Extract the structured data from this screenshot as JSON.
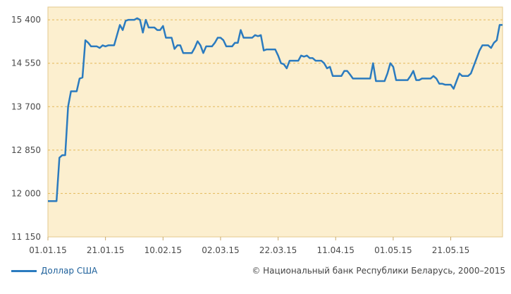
{
  "chart_data": {
    "type": "line",
    "title": "",
    "xlabel": "",
    "ylabel": "",
    "ylim": [
      11150,
      15650
    ],
    "yticks": [
      "11 150",
      "12 000",
      "12 850",
      "13 700",
      "14 550",
      "15 400"
    ],
    "ytick_values": [
      11150,
      12000,
      12850,
      13700,
      14550,
      15400
    ],
    "xticks": [
      "01.01.15",
      "21.01.15",
      "10.02.15",
      "02.03.15",
      "22.03.15",
      "11.04.15",
      "01.05.15",
      "21.05.15"
    ],
    "xlim": [
      "01.01.15",
      "08.06.15"
    ],
    "grid": true,
    "legend_position": "bottom-left",
    "series": [
      {
        "name": "Доллар США",
        "color": "#2b7bbf",
        "points": [
          [
            "01.01.15",
            11850
          ],
          [
            "02.01.15",
            11850
          ],
          [
            "03.01.15",
            11850
          ],
          [
            "04.01.15",
            11850
          ],
          [
            "05.01.15",
            12700
          ],
          [
            "06.01.15",
            12750
          ],
          [
            "07.01.15",
            12750
          ],
          [
            "08.01.15",
            13700
          ],
          [
            "09.01.15",
            14000
          ],
          [
            "10.01.15",
            14000
          ],
          [
            "11.01.15",
            14000
          ],
          [
            "12.01.15",
            14250
          ],
          [
            "13.01.15",
            14270
          ],
          [
            "14.01.15",
            15000
          ],
          [
            "15.01.15",
            14950
          ],
          [
            "16.01.15",
            14880
          ],
          [
            "17.01.15",
            14880
          ],
          [
            "18.01.15",
            14880
          ],
          [
            "19.01.15",
            14850
          ],
          [
            "20.01.15",
            14900
          ],
          [
            "21.01.15",
            14880
          ],
          [
            "22.01.15",
            14900
          ],
          [
            "23.01.15",
            14900
          ],
          [
            "24.01.15",
            14900
          ],
          [
            "25.01.15",
            15100
          ],
          [
            "26.01.15",
            15300
          ],
          [
            "27.01.15",
            15200
          ],
          [
            "28.01.15",
            15380
          ],
          [
            "29.01.15",
            15400
          ],
          [
            "30.01.15",
            15400
          ],
          [
            "31.01.15",
            15400
          ],
          [
            "01.02.15",
            15430
          ],
          [
            "02.02.15",
            15400
          ],
          [
            "03.02.15",
            15150
          ],
          [
            "04.02.15",
            15400
          ],
          [
            "05.02.15",
            15250
          ],
          [
            "06.02.15",
            15250
          ],
          [
            "07.02.15",
            15250
          ],
          [
            "08.02.15",
            15200
          ],
          [
            "09.02.15",
            15200
          ],
          [
            "10.02.15",
            15280
          ],
          [
            "11.02.15",
            15050
          ],
          [
            "12.02.15",
            15050
          ],
          [
            "13.02.15",
            15050
          ],
          [
            "14.02.15",
            14830
          ],
          [
            "15.02.15",
            14900
          ],
          [
            "16.02.15",
            14900
          ],
          [
            "17.02.15",
            14750
          ],
          [
            "18.02.15",
            14750
          ],
          [
            "19.02.15",
            14750
          ],
          [
            "20.02.15",
            14750
          ],
          [
            "21.02.15",
            14850
          ],
          [
            "22.02.15",
            14980
          ],
          [
            "23.02.15",
            14900
          ],
          [
            "24.02.15",
            14750
          ],
          [
            "25.02.15",
            14880
          ],
          [
            "26.02.15",
            14880
          ],
          [
            "27.02.15",
            14880
          ],
          [
            "28.02.15",
            14950
          ],
          [
            "01.03.15",
            15050
          ],
          [
            "02.03.15",
            15050
          ],
          [
            "03.03.15",
            15000
          ],
          [
            "04.03.15",
            14880
          ],
          [
            "05.03.15",
            14880
          ],
          [
            "06.03.15",
            14880
          ],
          [
            "07.03.15",
            14950
          ],
          [
            "08.03.15",
            14950
          ],
          [
            "09.03.15",
            15200
          ],
          [
            "10.03.15",
            15050
          ],
          [
            "11.03.15",
            15050
          ],
          [
            "12.03.15",
            15050
          ],
          [
            "13.03.15",
            15050
          ],
          [
            "14.03.15",
            15100
          ],
          [
            "15.03.15",
            15080
          ],
          [
            "16.03.15",
            15100
          ],
          [
            "17.03.15",
            14800
          ],
          [
            "18.03.15",
            14820
          ],
          [
            "19.03.15",
            14820
          ],
          [
            "20.03.15",
            14820
          ],
          [
            "21.03.15",
            14820
          ],
          [
            "22.03.15",
            14700
          ],
          [
            "23.03.15",
            14550
          ],
          [
            "24.03.15",
            14530
          ],
          [
            "25.03.15",
            14450
          ],
          [
            "26.03.15",
            14600
          ],
          [
            "27.03.15",
            14600
          ],
          [
            "28.03.15",
            14600
          ],
          [
            "29.03.15",
            14600
          ],
          [
            "30.03.15",
            14700
          ],
          [
            "31.03.15",
            14680
          ],
          [
            "01.04.15",
            14700
          ],
          [
            "02.04.15",
            14650
          ],
          [
            "03.04.15",
            14650
          ],
          [
            "04.04.15",
            14600
          ],
          [
            "05.04.15",
            14600
          ],
          [
            "06.04.15",
            14600
          ],
          [
            "07.04.15",
            14550
          ],
          [
            "08.04.15",
            14450
          ],
          [
            "09.04.15",
            14480
          ],
          [
            "10.04.15",
            14300
          ],
          [
            "11.04.15",
            14300
          ],
          [
            "12.04.15",
            14300
          ],
          [
            "13.04.15",
            14300
          ],
          [
            "14.04.15",
            14400
          ],
          [
            "15.04.15",
            14400
          ],
          [
            "16.04.15",
            14330
          ],
          [
            "17.04.15",
            14250
          ],
          [
            "18.04.15",
            14250
          ],
          [
            "19.04.15",
            14250
          ],
          [
            "20.04.15",
            14250
          ],
          [
            "21.04.15",
            14250
          ],
          [
            "22.04.15",
            14250
          ],
          [
            "23.04.15",
            14250
          ],
          [
            "24.04.15",
            14550
          ],
          [
            "25.04.15",
            14200
          ],
          [
            "26.04.15",
            14200
          ],
          [
            "27.04.15",
            14200
          ],
          [
            "28.04.15",
            14200
          ],
          [
            "29.04.15",
            14350
          ],
          [
            "30.04.15",
            14550
          ],
          [
            "01.05.15",
            14480
          ],
          [
            "02.05.15",
            14220
          ],
          [
            "03.05.15",
            14220
          ],
          [
            "04.05.15",
            14220
          ],
          [
            "05.05.15",
            14220
          ],
          [
            "06.05.15",
            14220
          ],
          [
            "07.05.15",
            14300
          ],
          [
            "08.05.15",
            14400
          ],
          [
            "09.05.15",
            14220
          ],
          [
            "10.05.15",
            14220
          ],
          [
            "11.05.15",
            14250
          ],
          [
            "12.05.15",
            14250
          ],
          [
            "13.05.15",
            14250
          ],
          [
            "14.05.15",
            14250
          ],
          [
            "15.05.15",
            14300
          ],
          [
            "16.05.15",
            14250
          ],
          [
            "17.05.15",
            14150
          ],
          [
            "18.05.15",
            14150
          ],
          [
            "19.05.15",
            14130
          ],
          [
            "20.05.15",
            14130
          ],
          [
            "21.05.15",
            14130
          ],
          [
            "22.05.15",
            14050
          ],
          [
            "23.05.15",
            14200
          ],
          [
            "24.05.15",
            14350
          ],
          [
            "25.05.15",
            14300
          ],
          [
            "26.05.15",
            14300
          ],
          [
            "27.05.15",
            14300
          ],
          [
            "28.05.15",
            14350
          ],
          [
            "29.05.15",
            14500
          ],
          [
            "30.05.15",
            14650
          ],
          [
            "31.05.15",
            14800
          ],
          [
            "01.06.15",
            14900
          ],
          [
            "02.06.15",
            14900
          ],
          [
            "03.06.15",
            14900
          ],
          [
            "04.06.15",
            14850
          ],
          [
            "05.06.15",
            14950
          ],
          [
            "06.06.15",
            15000
          ],
          [
            "07.06.15",
            15300
          ],
          [
            "08.06.15",
            15300
          ]
        ]
      }
    ]
  },
  "legend": {
    "label": "Доллар США"
  },
  "footer": {
    "copyright": "© Национальный банк Республики Беларусь, 2000–2015"
  }
}
